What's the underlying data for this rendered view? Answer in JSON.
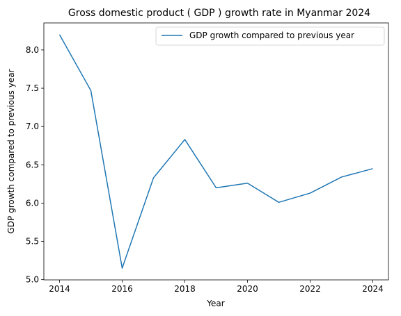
{
  "chart_data": {
    "type": "line",
    "title": "Gross domestic product ( GDP ) growth rate in Myanmar 2024",
    "xlabel": "Year",
    "ylabel": "GDP growth compared to previous year",
    "x": [
      2014,
      2015,
      2016,
      2017,
      2018,
      2019,
      2020,
      2021,
      2022,
      2023,
      2024
    ],
    "series": [
      {
        "name": "GDP growth compared to previous year",
        "color": "#1f77b4",
        "values": [
          8.2,
          7.47,
          5.15,
          6.33,
          6.83,
          6.2,
          6.26,
          6.01,
          6.13,
          6.34,
          6.45
        ]
      }
    ],
    "xticks": [
      2014,
      2016,
      2018,
      2020,
      2022,
      2024
    ],
    "xtick_labels": [
      "2014",
      "2016",
      "2018",
      "2020",
      "2022",
      "2024"
    ],
    "yticks": [
      5.0,
      5.5,
      6.0,
      6.5,
      7.0,
      7.5,
      8.0
    ],
    "ytick_labels": [
      "5.0",
      "5.5",
      "6.0",
      "6.5",
      "7.0",
      "7.5",
      "8.0"
    ],
    "xlim": [
      2013.5,
      2024.5
    ],
    "ylim": [
      4.997,
      8.353
    ],
    "grid": false,
    "legend": "upper right"
  }
}
